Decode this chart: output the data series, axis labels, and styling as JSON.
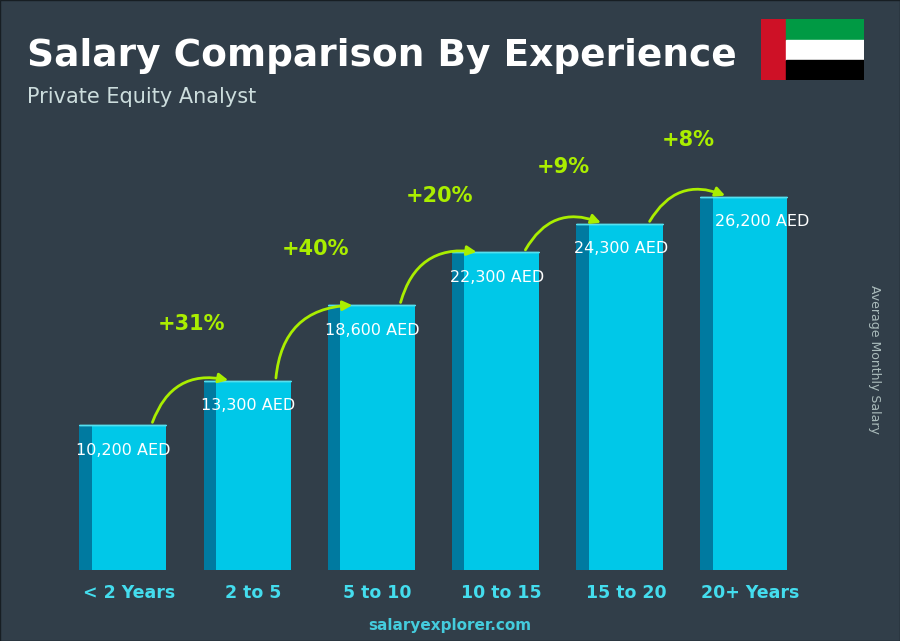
{
  "title": "Salary Comparison By Experience",
  "subtitle": "Private Equity Analyst",
  "categories": [
    "< 2 Years",
    "2 to 5",
    "5 to 10",
    "10 to 15",
    "15 to 20",
    "20+ Years"
  ],
  "values": [
    10200,
    13300,
    18600,
    22300,
    24300,
    26200
  ],
  "labels": [
    "10,200 AED",
    "13,300 AED",
    "18,600 AED",
    "22,300 AED",
    "24,300 AED",
    "26,200 AED"
  ],
  "pct_changes": [
    null,
    "+31%",
    "+40%",
    "+20%",
    "+9%",
    "+8%"
  ],
  "bar_color_main": "#00C8E8",
  "bar_color_left": "#007AA0",
  "bar_color_top": "#55DFEF",
  "arrow_color": "#AAEE00",
  "label_color": "#FFFFFF",
  "pct_color": "#AAEE00",
  "title_color": "#FFFFFF",
  "subtitle_color": "#CCDDDD",
  "bg_color": "#3a4a55",
  "ylabel": "Average Monthly Salary",
  "footer": "salaryexplorer.com",
  "ylim_max": 31000,
  "title_fontsize": 27,
  "subtitle_fontsize": 15,
  "label_fontsize": 11.5,
  "pct_fontsize": 15,
  "tick_fontsize": 12.5
}
